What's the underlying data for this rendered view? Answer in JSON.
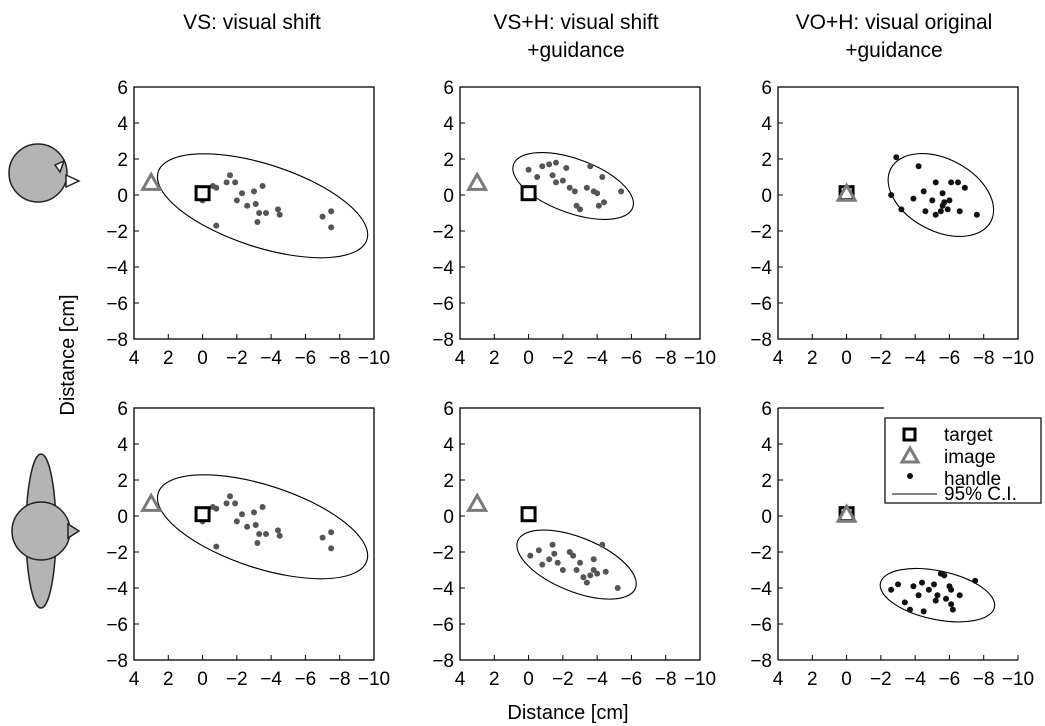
{
  "chart_data": {
    "type": "scatter",
    "column_titles": [
      [
        "VS: visual shift"
      ],
      [
        "VS+H: visual shift",
        "+guidance"
      ],
      [
        "VO+H: visual original",
        "+guidance"
      ]
    ],
    "xlabel": "Distance [cm]",
    "ylabel": "Distance [cm]",
    "xlim": [
      4,
      -10
    ],
    "ylim": [
      -8,
      6
    ],
    "x_ticks": [
      4,
      2,
      0,
      -2,
      -4,
      -6,
      -8,
      -10
    ],
    "x_tick_labels": [
      "4",
      "2",
      "0",
      "−2",
      "−4",
      "−6",
      "−8",
      "−10"
    ],
    "y_ticks": [
      6,
      4,
      2,
      0,
      -2,
      -4,
      -6,
      -8
    ],
    "y_tick_labels": [
      "6",
      "4",
      "2",
      "0",
      "−2",
      "−4",
      "−6",
      "−8"
    ],
    "legend": {
      "placement": "top-right of bottom-right panel",
      "entries": [
        "target",
        "image",
        "handle",
        "95% C.I."
      ]
    },
    "colors": {
      "target": "#000000",
      "image": "#7a7a7a",
      "handle_shift": "#555555",
      "handle_original": "#111111",
      "head_fill": "#b4b4b4"
    },
    "row_icons": [
      "bird-head-icon",
      "bird-with-wings-icon"
    ],
    "panels": [
      {
        "row": 0,
        "col": 0,
        "target": [
          0,
          0.1
        ],
        "image": [
          3,
          0.7
        ],
        "ellipse": {
          "center": [
            -3.5,
            -0.6
          ],
          "semi_axes": [
            6.4,
            2.3
          ],
          "angle_deg": -18
        },
        "handle": [
          [
            0,
            -0.3
          ],
          [
            -0.6,
            0.5
          ],
          [
            -0.8,
            0.4
          ],
          [
            -0.8,
            -1.7
          ],
          [
            -1.6,
            1.1
          ],
          [
            -1.4,
            0.7
          ],
          [
            -1.9,
            0.7
          ],
          [
            -2,
            -0.3
          ],
          [
            -2.3,
            0.1
          ],
          [
            -2.6,
            -0.6
          ],
          [
            -3.1,
            -0.5
          ],
          [
            -3,
            0.2
          ],
          [
            -3.3,
            -1
          ],
          [
            -3.5,
            0.5
          ],
          [
            -3.2,
            -1.5
          ],
          [
            -3.7,
            -1
          ],
          [
            -4.4,
            -0.8
          ],
          [
            -4.5,
            -1.1
          ],
          [
            -7,
            -1.2
          ],
          [
            -7.5,
            -0.9
          ],
          [
            -7.5,
            -1.8
          ]
        ]
      },
      {
        "row": 0,
        "col": 1,
        "target": [
          0,
          0.1
        ],
        "image": [
          3,
          0.7
        ],
        "ellipse": {
          "center": [
            -2.6,
            0.5
          ],
          "semi_axes": [
            3.7,
            1.5
          ],
          "angle_deg": -20
        },
        "handle": [
          [
            0,
            1.4
          ],
          [
            -0.5,
            1
          ],
          [
            -0.8,
            1.6
          ],
          [
            -1.2,
            1.7
          ],
          [
            -1.6,
            1.8
          ],
          [
            -1.4,
            1.1
          ],
          [
            -1.6,
            0.7
          ],
          [
            -2,
            0.8
          ],
          [
            -2.2,
            1.5
          ],
          [
            -2.4,
            0.4
          ],
          [
            -2.7,
            0.2
          ],
          [
            -2.8,
            -0.6
          ],
          [
            -3,
            -0.8
          ],
          [
            -3.4,
            0.4
          ],
          [
            -3.6,
            1.6
          ],
          [
            -3.8,
            0.2
          ],
          [
            -4,
            0.1
          ],
          [
            -4.1,
            -0.6
          ],
          [
            -4.4,
            -0.4
          ],
          [
            -4.3,
            1
          ],
          [
            -5.4,
            0.2
          ]
        ]
      },
      {
        "row": 0,
        "col": 2,
        "target": [
          0,
          0.1
        ],
        "image": [
          0,
          0.1
        ],
        "ellipse": {
          "center": [
            -5.5,
            0
          ],
          "semi_axes": [
            3.3,
            2
          ],
          "angle_deg": -28
        },
        "handle": [
          [
            -2.9,
            2.1
          ],
          [
            -2.6,
            0
          ],
          [
            -3.2,
            -0.8
          ],
          [
            -3.9,
            -0.2
          ],
          [
            -4.2,
            1.6
          ],
          [
            -4.5,
            0.2
          ],
          [
            -4.6,
            -0.9
          ],
          [
            -5,
            -0.3
          ],
          [
            -5.2,
            -1.1
          ],
          [
            -5.2,
            0.7
          ],
          [
            -5.6,
            0.1
          ],
          [
            -5.5,
            -0.9
          ],
          [
            -5.7,
            -0.4
          ],
          [
            -5.9,
            -0.8
          ],
          [
            -6.1,
            0.7
          ],
          [
            -6,
            -0.3
          ],
          [
            -6.5,
            0.7
          ],
          [
            -6.6,
            -0.9
          ],
          [
            -6.9,
            0.4
          ],
          [
            -7.6,
            -1.1
          ],
          [
            -5.6,
            -0.6
          ]
        ]
      },
      {
        "row": 1,
        "col": 0,
        "target": [
          0,
          0.1
        ],
        "image": [
          3,
          0.7
        ],
        "ellipse": {
          "center": [
            -3.5,
            -0.6
          ],
          "semi_axes": [
            6.4,
            2.3
          ],
          "angle_deg": -18
        },
        "handle": [
          [
            0,
            -0.3
          ],
          [
            -0.6,
            0.5
          ],
          [
            -0.8,
            0.4
          ],
          [
            -0.8,
            -1.7
          ],
          [
            -1.6,
            1.1
          ],
          [
            -1.4,
            0.7
          ],
          [
            -1.9,
            0.7
          ],
          [
            -2,
            -0.3
          ],
          [
            -2.3,
            0.1
          ],
          [
            -2.6,
            -0.6
          ],
          [
            -3.1,
            -0.5
          ],
          [
            -3,
            0.2
          ],
          [
            -3.3,
            -1
          ],
          [
            -3.5,
            0.5
          ],
          [
            -3.2,
            -1.5
          ],
          [
            -3.7,
            -1
          ],
          [
            -4.4,
            -0.8
          ],
          [
            -4.5,
            -1.1
          ],
          [
            -7,
            -1.2
          ],
          [
            -7.5,
            -0.9
          ],
          [
            -7.5,
            -1.8
          ]
        ]
      },
      {
        "row": 1,
        "col": 1,
        "target": [
          0,
          0.1
        ],
        "image": [
          3,
          0.7
        ],
        "ellipse": {
          "center": [
            -2.8,
            -2.7
          ],
          "semi_axes": [
            3.7,
            1.5
          ],
          "angle_deg": -22
        },
        "handle": [
          [
            -0.1,
            -2.2
          ],
          [
            -0.6,
            -1.9
          ],
          [
            -0.8,
            -2.7
          ],
          [
            -1.2,
            -2.4
          ],
          [
            -1.4,
            -1.6
          ],
          [
            -1.5,
            -2.1
          ],
          [
            -1.7,
            -2.6
          ],
          [
            -2,
            -3
          ],
          [
            -2.4,
            -2
          ],
          [
            -2.6,
            -2.2
          ],
          [
            -2.8,
            -3
          ],
          [
            -3,
            -2.6
          ],
          [
            -3.2,
            -3.4
          ],
          [
            -3.4,
            -3.7
          ],
          [
            -3.6,
            -3.3
          ],
          [
            -3.8,
            -2.4
          ],
          [
            -4,
            -3.2
          ],
          [
            -4.3,
            -1.6
          ],
          [
            -4.5,
            -3.1
          ],
          [
            -5.2,
            -4
          ],
          [
            -3.8,
            -3
          ]
        ]
      },
      {
        "row": 1,
        "col": 2,
        "target": [
          0,
          0.1
        ],
        "image": [
          0,
          0.1
        ],
        "ellipse": {
          "center": [
            -5.3,
            -4.4
          ],
          "semi_axes": [
            3.4,
            1.35
          ],
          "angle_deg": -12
        },
        "handle": [
          [
            -2.6,
            -4.1
          ],
          [
            -3,
            -3.8
          ],
          [
            -3.4,
            -4.8
          ],
          [
            -3.7,
            -5.2
          ],
          [
            -3.9,
            -3.9
          ],
          [
            -4.2,
            -4.4
          ],
          [
            -4.4,
            -3.7
          ],
          [
            -4.5,
            -5.3
          ],
          [
            -4.8,
            -4.1
          ],
          [
            -5.1,
            -3.8
          ],
          [
            -5.2,
            -4.7
          ],
          [
            -5.3,
            -4.4
          ],
          [
            -5.5,
            -3.2
          ],
          [
            -5.8,
            -4.6
          ],
          [
            -6,
            -3.9
          ],
          [
            -6.1,
            -4.9
          ],
          [
            -6.2,
            -5.2
          ],
          [
            -6.6,
            -4.4
          ],
          [
            -7.5,
            -3.6
          ],
          [
            -5.7,
            -3.3
          ],
          [
            -6.1,
            -4.1
          ]
        ]
      }
    ]
  }
}
